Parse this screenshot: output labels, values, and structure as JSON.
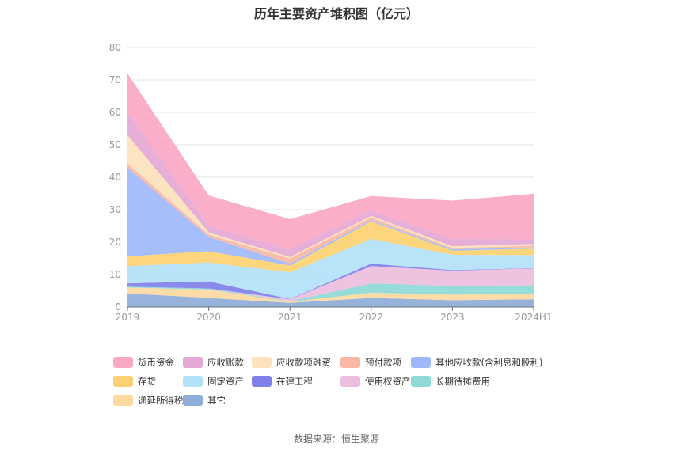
{
  "title": "历年主要资产堆积图（亿元）",
  "source": "数据来源：恒生聚源",
  "chart_data": {
    "type": "area",
    "stacked": true,
    "title": "历年主要资产堆积图（亿元）",
    "categories": [
      "2019",
      "2020",
      "2021",
      "2022",
      "2023",
      "2024H1"
    ],
    "y_ticks": [
      "0",
      "10",
      "20",
      "30",
      "40",
      "50",
      "60",
      "70",
      "80"
    ],
    "ylim": [
      0,
      80
    ],
    "grid": true,
    "legend_position": "bottom",
    "series": [
      {
        "name": "其它",
        "color": "#8eadd9",
        "values": [
          4.2,
          2.8,
          1.3,
          2.8,
          2.1,
          2.4
        ]
      },
      {
        "name": "递延所得税资产",
        "color": "#fdd9a0",
        "values": [
          1.8,
          2.6,
          0.3,
          1.6,
          1.7,
          1.7
        ]
      },
      {
        "name": "长期待摊费用",
        "color": "#8fd9d6",
        "values": [
          0.3,
          0.3,
          0.2,
          2.9,
          2.7,
          2.6
        ]
      },
      {
        "name": "使用权资产",
        "color": "#ebbedd",
        "values": [
          0.0,
          0.0,
          0.6,
          5.3,
          4.7,
          5.2
        ]
      },
      {
        "name": "在建工程",
        "color": "#8080ea",
        "values": [
          1.0,
          2.2,
          0.1,
          0.8,
          0.2,
          0.1
        ]
      },
      {
        "name": "固定资产",
        "color": "#b3e1f8",
        "values": [
          5.3,
          5.8,
          8.2,
          7.6,
          4.7,
          4.0
        ]
      },
      {
        "name": "存货",
        "color": "#fcd171",
        "values": [
          3.0,
          3.5,
          2.1,
          5.4,
          1.3,
          2.0
        ]
      },
      {
        "name": "其他应收款(含利息和股利)",
        "color": "#9eb8fb",
        "values": [
          27.4,
          4.4,
          0.6,
          0.4,
          0.4,
          0.4
        ]
      },
      {
        "name": "预付款项",
        "color": "#f9b7a5",
        "values": [
          1.2,
          0.8,
          1.6,
          0.8,
          0.4,
          0.5
        ]
      },
      {
        "name": "应收款项融资",
        "color": "#fde2bb",
        "values": [
          8.8,
          0.6,
          0.4,
          0.5,
          0.5,
          0.5
        ]
      },
      {
        "name": "应收账款",
        "color": "#e5a8d4",
        "values": [
          7.0,
          2.0,
          2.2,
          1.6,
          2.3,
          1.4
        ]
      },
      {
        "name": "货币资金",
        "color": "#fba7c6",
        "values": [
          12.0,
          9.4,
          9.5,
          4.5,
          11.8,
          14.1
        ]
      }
    ],
    "legend_order": [
      "货币资金",
      "应收账款",
      "应收款项融资",
      "预付款项",
      "其他应收款(含利息和股利)",
      "存货",
      "固定资产",
      "在建工程",
      "使用权资产",
      "长期待摊费用",
      "递延所得税资产",
      "其它"
    ]
  }
}
